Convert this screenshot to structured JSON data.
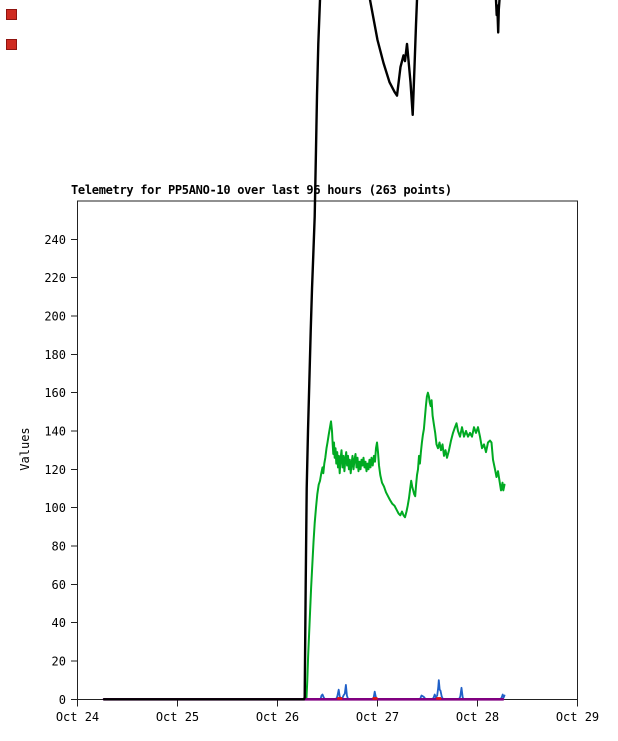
{
  "icons": {
    "red_square_color": "#cf2b21"
  },
  "chart_data": {
    "type": "line",
    "title": "Telemetry for PP5ANO-10 over last 96 hours (263 points)",
    "ylabel": "Values",
    "xlabel": "",
    "legend": "none",
    "grid": false,
    "ylim": [
      0,
      260
    ],
    "x_axis_unit": "days since Oct 24",
    "xlim_days": [
      0,
      5
    ],
    "x_tick_labels": [
      "Oct 24",
      "Oct 25",
      "Oct 26",
      "Oct 27",
      "Oct 28",
      "Oct 29"
    ],
    "y_ticks": [
      0,
      20,
      40,
      60,
      80,
      100,
      120,
      140,
      160,
      180,
      200,
      220,
      240
    ],
    "note": "black series exceeds y-range and is drawn unclipped above the plot box",
    "series": [
      {
        "name": "channel-green",
        "color": "#00aa22",
        "width": 2,
        "points": [
          [
            2.29,
            1
          ],
          [
            2.298,
            10
          ],
          [
            2.306,
            22
          ],
          [
            2.316,
            34
          ],
          [
            2.326,
            46
          ],
          [
            2.336,
            58
          ],
          [
            2.348,
            70
          ],
          [
            2.36,
            82
          ],
          [
            2.372,
            92
          ],
          [
            2.385,
            100
          ],
          [
            2.398,
            107
          ],
          [
            2.412,
            112
          ],
          [
            2.425,
            114
          ],
          [
            2.438,
            118
          ],
          [
            2.45,
            121
          ],
          [
            2.458,
            118
          ],
          [
            2.468,
            123
          ],
          [
            2.478,
            126
          ],
          [
            2.49,
            131
          ],
          [
            2.5,
            134
          ],
          [
            2.512,
            138
          ],
          [
            2.525,
            142
          ],
          [
            2.535,
            145
          ],
          [
            2.545,
            140
          ],
          [
            2.552,
            133
          ],
          [
            2.558,
            128
          ],
          [
            2.565,
            134
          ],
          [
            2.572,
            126
          ],
          [
            2.58,
            131
          ],
          [
            2.588,
            123
          ],
          [
            2.597,
            129
          ],
          [
            2.605,
            121
          ],
          [
            2.613,
            127
          ],
          [
            2.622,
            118
          ],
          [
            2.63,
            125
          ],
          [
            2.64,
            130
          ],
          [
            2.65,
            121
          ],
          [
            2.66,
            127
          ],
          [
            2.669,
            119
          ],
          [
            2.678,
            125
          ],
          [
            2.687,
            129
          ],
          [
            2.696,
            122
          ],
          [
            2.705,
            127
          ],
          [
            2.714,
            120
          ],
          [
            2.723,
            125
          ],
          [
            2.732,
            118
          ],
          [
            2.741,
            123
          ],
          [
            2.75,
            127
          ],
          [
            2.76,
            120
          ],
          [
            2.77,
            125
          ],
          [
            2.78,
            128
          ],
          [
            2.79,
            121
          ],
          [
            2.8,
            126
          ],
          [
            2.81,
            119
          ],
          [
            2.82,
            124
          ],
          [
            2.83,
            120
          ],
          [
            2.84,
            125
          ],
          [
            2.85,
            122
          ],
          [
            2.86,
            126
          ],
          [
            2.87,
            121
          ],
          [
            2.88,
            124
          ],
          [
            2.89,
            119
          ],
          [
            2.9,
            123
          ],
          [
            2.91,
            120
          ],
          [
            2.92,
            125
          ],
          [
            2.93,
            121
          ],
          [
            2.94,
            126
          ],
          [
            2.952,
            122
          ],
          [
            2.964,
            127
          ],
          [
            2.975,
            124
          ],
          [
            2.985,
            131
          ],
          [
            2.995,
            134
          ],
          [
            3.005,
            129
          ],
          [
            3.015,
            122
          ],
          [
            3.028,
            117
          ],
          [
            3.045,
            113
          ],
          [
            3.065,
            111
          ],
          [
            3.085,
            108
          ],
          [
            3.105,
            106
          ],
          [
            3.125,
            104
          ],
          [
            3.148,
            102
          ],
          [
            3.17,
            101
          ],
          [
            3.19,
            99
          ],
          [
            3.21,
            97
          ],
          [
            3.228,
            96
          ],
          [
            3.245,
            98
          ],
          [
            3.26,
            96
          ],
          [
            3.275,
            95
          ],
          [
            3.29,
            98
          ],
          [
            3.302,
            101
          ],
          [
            3.315,
            105
          ],
          [
            3.327,
            110
          ],
          [
            3.337,
            114
          ],
          [
            3.347,
            111
          ],
          [
            3.357,
            109
          ],
          [
            3.367,
            107
          ],
          [
            3.377,
            106
          ],
          [
            3.386,
            112
          ],
          [
            3.395,
            117
          ],
          [
            3.405,
            120
          ],
          [
            3.415,
            127
          ],
          [
            3.424,
            123
          ],
          [
            3.434,
            129
          ],
          [
            3.444,
            134
          ],
          [
            3.454,
            138
          ],
          [
            3.464,
            141
          ],
          [
            3.474,
            147
          ],
          [
            3.484,
            153
          ],
          [
            3.494,
            158
          ],
          [
            3.504,
            160
          ],
          [
            3.514,
            158
          ],
          [
            3.522,
            155
          ],
          [
            3.532,
            153
          ],
          [
            3.541,
            156
          ],
          [
            3.551,
            148
          ],
          [
            3.565,
            143
          ],
          [
            3.577,
            139
          ],
          [
            3.59,
            133
          ],
          [
            3.605,
            131
          ],
          [
            3.62,
            134
          ],
          [
            3.635,
            130
          ],
          [
            3.65,
            133
          ],
          [
            3.665,
            127
          ],
          [
            3.68,
            130
          ],
          [
            3.695,
            126
          ],
          [
            3.715,
            130
          ],
          [
            3.735,
            135
          ],
          [
            3.755,
            139
          ],
          [
            3.775,
            142
          ],
          [
            3.79,
            144
          ],
          [
            3.805,
            140
          ],
          [
            3.825,
            137
          ],
          [
            3.845,
            142
          ],
          [
            3.865,
            137
          ],
          [
            3.885,
            140
          ],
          [
            3.905,
            137
          ],
          [
            3.925,
            139
          ],
          [
            3.945,
            137
          ],
          [
            3.965,
            142
          ],
          [
            3.985,
            139
          ],
          [
            4.005,
            142
          ],
          [
            4.025,
            137
          ],
          [
            4.045,
            131
          ],
          [
            4.065,
            133
          ],
          [
            4.085,
            129
          ],
          [
            4.105,
            134
          ],
          [
            4.125,
            135
          ],
          [
            4.14,
            134
          ],
          [
            4.155,
            125
          ],
          [
            4.175,
            120
          ],
          [
            4.19,
            116
          ],
          [
            4.205,
            119
          ],
          [
            4.22,
            114
          ],
          [
            4.235,
            109
          ],
          [
            4.25,
            113
          ],
          [
            4.258,
            109
          ],
          [
            4.27,
            112
          ]
        ]
      },
      {
        "name": "channel-blue",
        "color": "#2060c8",
        "width": 1.8,
        "points": [
          [
            0.265,
            0
          ],
          [
            2.43,
            0
          ],
          [
            2.44,
            2
          ],
          [
            2.45,
            2.5
          ],
          [
            2.462,
            1
          ],
          [
            2.475,
            0
          ],
          [
            2.585,
            0
          ],
          [
            2.598,
            1.5
          ],
          [
            2.612,
            5
          ],
          [
            2.622,
            1.5
          ],
          [
            2.632,
            0.5
          ],
          [
            2.648,
            0.5
          ],
          [
            2.66,
            2
          ],
          [
            2.673,
            3
          ],
          [
            2.684,
            7.5
          ],
          [
            2.694,
            2
          ],
          [
            2.703,
            0.5
          ],
          [
            2.715,
            0
          ],
          [
            2.95,
            0
          ],
          [
            2.962,
            1
          ],
          [
            2.972,
            4
          ],
          [
            2.982,
            1.5
          ],
          [
            2.992,
            0
          ],
          [
            3.425,
            0
          ],
          [
            3.44,
            2
          ],
          [
            3.455,
            1.5
          ],
          [
            3.468,
            1
          ],
          [
            3.48,
            0
          ],
          [
            3.55,
            0
          ],
          [
            3.562,
            1
          ],
          [
            3.572,
            2.5
          ],
          [
            3.583,
            1
          ],
          [
            3.597,
            2
          ],
          [
            3.607,
            6
          ],
          [
            3.613,
            10
          ],
          [
            3.622,
            5
          ],
          [
            3.63,
            4.5
          ],
          [
            3.642,
            1.5
          ],
          [
            3.655,
            0
          ],
          [
            3.815,
            0
          ],
          [
            3.828,
            1.5
          ],
          [
            3.84,
            6
          ],
          [
            3.852,
            1
          ],
          [
            3.862,
            0
          ],
          [
            4.23,
            0
          ],
          [
            4.242,
            1
          ],
          [
            4.252,
            2.5
          ],
          [
            4.262,
            1
          ],
          [
            4.27,
            2
          ]
        ]
      },
      {
        "name": "channel-magenta",
        "color": "#800080",
        "width": 2.6,
        "points": [
          [
            0.265,
            0
          ],
          [
            4.255,
            0
          ]
        ]
      },
      {
        "name": "channel-black",
        "color": "#000000",
        "width": 2.4,
        "points": [
          [
            0.265,
            0
          ],
          [
            2.265,
            0
          ],
          [
            2.272,
            1
          ],
          [
            2.282,
            60
          ],
          [
            2.292,
            110
          ],
          [
            2.305,
            140
          ],
          [
            2.318,
            165
          ],
          [
            2.332,
            192
          ],
          [
            2.345,
            214
          ],
          [
            2.358,
            232
          ],
          [
            2.372,
            252
          ],
          [
            2.385,
            287
          ],
          [
            2.395,
            315
          ],
          [
            2.408,
            342
          ],
          [
            2.425,
            365
          ],
          [
            2.44,
            520
          ],
          [
            2.908,
            520
          ],
          [
            2.925,
            365
          ],
          [
            3.0,
            344
          ],
          [
            3.06,
            332
          ],
          [
            3.12,
            322
          ],
          [
            3.17,
            317
          ],
          [
            3.195,
            315
          ],
          [
            3.23,
            330
          ],
          [
            3.26,
            336
          ],
          [
            3.275,
            333
          ],
          [
            3.295,
            342
          ],
          [
            3.33,
            322
          ],
          [
            3.352,
            305
          ],
          [
            3.37,
            330
          ],
          [
            3.385,
            352
          ],
          [
            3.395,
            365
          ],
          [
            3.41,
            520
          ],
          [
            4.17,
            520
          ],
          [
            4.185,
            365
          ],
          [
            4.192,
            357
          ],
          [
            4.198,
            362
          ],
          [
            4.207,
            348
          ],
          [
            4.213,
            360
          ],
          [
            4.22,
            365
          ],
          [
            4.23,
            520
          ],
          [
            4.265,
            520
          ]
        ]
      },
      {
        "name": "channel-red",
        "color": "#e01010",
        "type": "marks",
        "width": 5,
        "points": [
          [
            2.622,
            0
          ],
          [
            2.975,
            0
          ],
          [
            3.612,
            0
          ]
        ]
      }
    ]
  }
}
